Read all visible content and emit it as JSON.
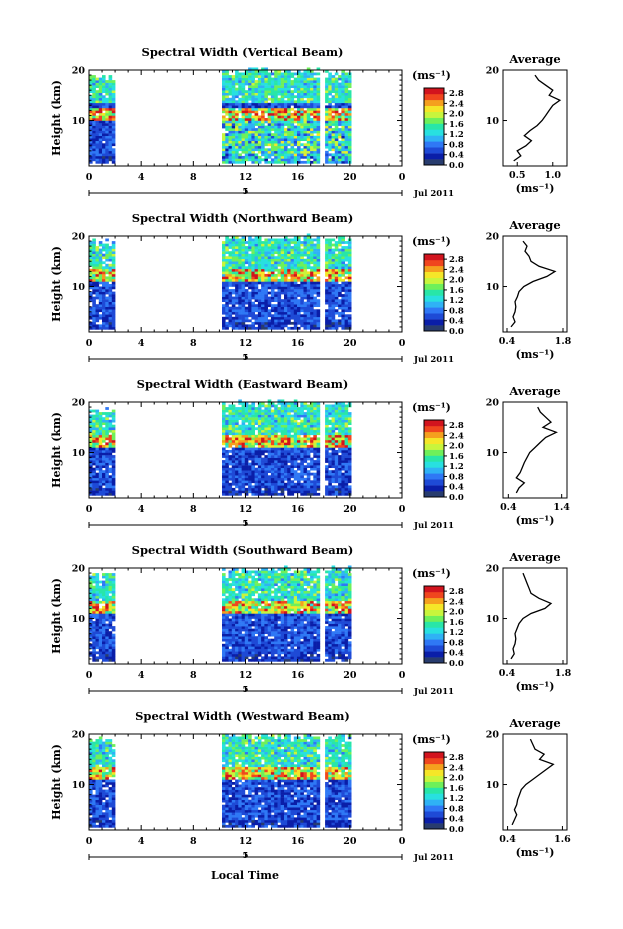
{
  "figure": {
    "x_axis_label": "Local Time",
    "date_label": "Jul 2011",
    "y_axis_label": "Height (km)",
    "unit_label": "(ms⁻¹)",
    "average_title": "Average",
    "colorbar_ticks": [
      "2.8",
      "2.4",
      "2.0",
      "1.6",
      "1.2",
      "0.8",
      "0.4",
      "0.0"
    ],
    "date_axis_tick": "5"
  },
  "colors": {
    "colormap": [
      "#283c6e",
      "#0a1ea8",
      "#1e4ad6",
      "#2f78f5",
      "#2fb2f5",
      "#28e0e0",
      "#28e6a8",
      "#6ef05a",
      "#c8f53c",
      "#f5e628",
      "#f5a01e",
      "#f0461e",
      "#d2141e"
    ]
  },
  "chart_data": [
    {
      "type": "heatmap",
      "title": "Spectral Width (Vertical Beam)",
      "x_ticks": [
        "0",
        "4",
        "8",
        "12",
        "16",
        "20",
        "0"
      ],
      "y_ticks": [
        "20",
        "10"
      ],
      "xlim": [
        0,
        24
      ],
      "ylim": [
        1,
        20
      ],
      "data_segments_hours": [
        [
          0,
          1.8
        ],
        [
          10.2,
          17.5
        ],
        [
          18.1,
          20
        ]
      ],
      "colorbar_range": [
        0.0,
        3.0
      ],
      "average_profile": {
        "xlabel": "(ms⁻¹)",
        "x_ticks": [
          "0.5",
          "1.0"
        ],
        "xlim": [
          0.3,
          1.2
        ],
        "height_km": [
          2,
          3,
          4,
          5,
          6,
          7,
          8,
          9,
          10,
          11,
          12,
          13,
          14,
          15,
          16,
          17,
          18,
          19
        ],
        "width": [
          0.45,
          0.55,
          0.5,
          0.62,
          0.7,
          0.6,
          0.68,
          0.78,
          0.85,
          0.9,
          0.95,
          1.0,
          1.1,
          0.95,
          1.0,
          0.9,
          0.8,
          0.75
        ]
      }
    },
    {
      "type": "heatmap",
      "title": "Spectral Width (Northward Beam)",
      "x_ticks": [
        "0",
        "4",
        "8",
        "12",
        "16",
        "20",
        "0"
      ],
      "y_ticks": [
        "20",
        "10"
      ],
      "xlim": [
        0,
        24
      ],
      "ylim": [
        1,
        20
      ],
      "data_segments_hours": [
        [
          0,
          1.8
        ],
        [
          10.2,
          17.5
        ],
        [
          18.1,
          20
        ]
      ],
      "colorbar_range": [
        0.0,
        3.0
      ],
      "average_profile": {
        "xlabel": "(ms⁻¹)",
        "x_ticks": [
          "0.4",
          "1.8"
        ],
        "xlim": [
          0.3,
          1.9
        ],
        "height_km": [
          2,
          3,
          4,
          5,
          6,
          7,
          8,
          9,
          10,
          11,
          12,
          13,
          14,
          15,
          16,
          17,
          18,
          19
        ],
        "width": [
          0.5,
          0.6,
          0.55,
          0.6,
          0.62,
          0.6,
          0.66,
          0.7,
          0.82,
          1.05,
          1.4,
          1.6,
          1.2,
          1.0,
          0.95,
          0.85,
          0.9,
          0.8
        ]
      }
    },
    {
      "type": "heatmap",
      "title": "Spectral Width (Eastward Beam)",
      "x_ticks": [
        "0",
        "4",
        "8",
        "12",
        "16",
        "20",
        "0"
      ],
      "y_ticks": [
        "20",
        "10"
      ],
      "xlim": [
        0,
        24
      ],
      "ylim": [
        1,
        20
      ],
      "data_segments_hours": [
        [
          0,
          1.8
        ],
        [
          10.2,
          17.5
        ],
        [
          18.1,
          20
        ]
      ],
      "colorbar_range": [
        0.0,
        3.0
      ],
      "average_profile": {
        "xlabel": "(ms⁻¹)",
        "x_ticks": [
          "0.4",
          "1.4"
        ],
        "xlim": [
          0.3,
          1.5
        ],
        "height_km": [
          2,
          3,
          4,
          5,
          6,
          7,
          8,
          9,
          10,
          11,
          12,
          13,
          14,
          15,
          16,
          17,
          18,
          19
        ],
        "width": [
          0.55,
          0.6,
          0.7,
          0.55,
          0.62,
          0.66,
          0.7,
          0.75,
          0.8,
          0.9,
          1.0,
          1.1,
          1.3,
          1.05,
          1.2,
          1.1,
          1.0,
          0.95
        ]
      }
    },
    {
      "type": "heatmap",
      "title": "Spectral Width (Southward Beam)",
      "x_ticks": [
        "0",
        "4",
        "8",
        "12",
        "16",
        "20",
        "0"
      ],
      "y_ticks": [
        "20",
        "10"
      ],
      "xlim": [
        0,
        24
      ],
      "ylim": [
        1,
        20
      ],
      "data_segments_hours": [
        [
          0,
          1.8
        ],
        [
          10.2,
          17.5
        ],
        [
          18.1,
          20
        ]
      ],
      "colorbar_range": [
        0.0,
        3.0
      ],
      "average_profile": {
        "xlabel": "(ms⁻¹)",
        "x_ticks": [
          "0.4",
          "1.8"
        ],
        "xlim": [
          0.3,
          1.9
        ],
        "height_km": [
          2,
          3,
          4,
          5,
          6,
          7,
          8,
          9,
          10,
          11,
          12,
          13,
          14,
          15,
          16,
          17,
          18,
          19
        ],
        "width": [
          0.5,
          0.58,
          0.55,
          0.6,
          0.62,
          0.6,
          0.65,
          0.7,
          0.8,
          1.0,
          1.35,
          1.5,
          1.2,
          1.0,
          0.95,
          0.9,
          0.85,
          0.8
        ]
      }
    },
    {
      "type": "heatmap",
      "title": "Spectral Width (Westward Beam)",
      "x_ticks": [
        "0",
        "4",
        "8",
        "12",
        "16",
        "20",
        "0"
      ],
      "y_ticks": [
        "20",
        "10"
      ],
      "xlim": [
        0,
        24
      ],
      "ylim": [
        1,
        20
      ],
      "data_segments_hours": [
        [
          0,
          1.8
        ],
        [
          10.2,
          17.5
        ],
        [
          18.1,
          20
        ]
      ],
      "colorbar_range": [
        0.0,
        3.0
      ],
      "average_profile": {
        "xlabel": "(ms⁻¹)",
        "x_ticks": [
          "0.4",
          "1.6"
        ],
        "xlim": [
          0.3,
          1.7
        ],
        "height_km": [
          2,
          3,
          4,
          5,
          6,
          7,
          8,
          9,
          10,
          11,
          12,
          13,
          14,
          15,
          16,
          17,
          18,
          19
        ],
        "width": [
          0.5,
          0.55,
          0.6,
          0.55,
          0.6,
          0.62,
          0.66,
          0.7,
          0.8,
          0.95,
          1.1,
          1.25,
          1.4,
          1.1,
          1.2,
          1.0,
          0.95,
          0.9
        ]
      }
    }
  ]
}
